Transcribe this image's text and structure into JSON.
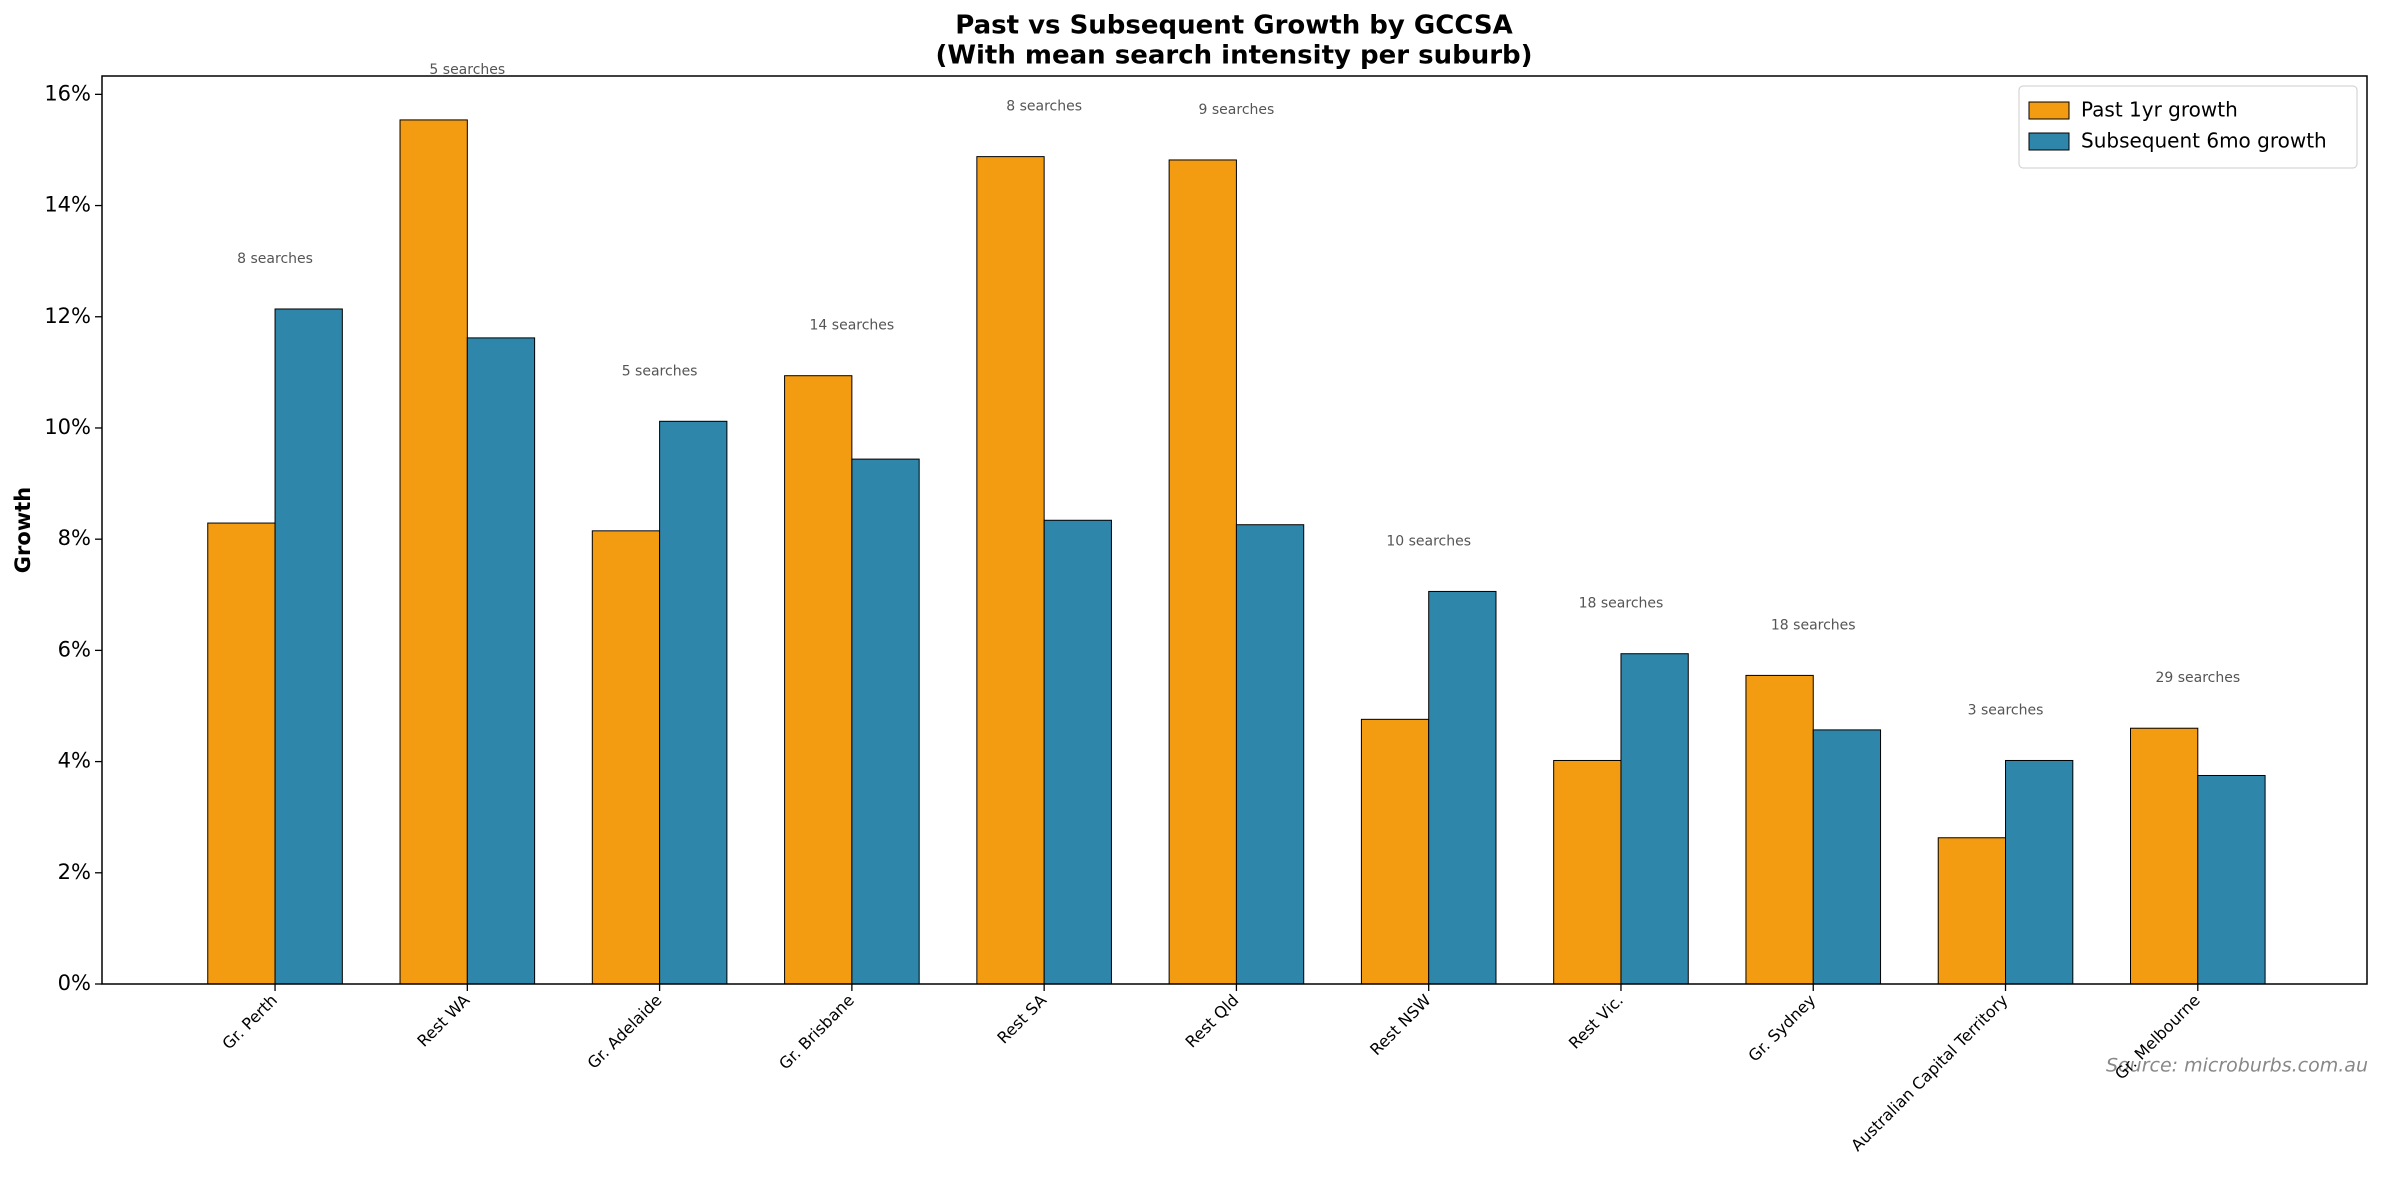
{
  "chart_data": {
    "type": "bar",
    "title": "Past vs Subsequent Growth by GCCSA",
    "subtitle": "(With mean search intensity per suburb)",
    "y_label": "Growth",
    "categories": [
      "Gr. Perth",
      "Rest WA",
      "Gr. Adelaide",
      "Gr. Brisbane",
      "Rest SA",
      "Rest Qld",
      "Rest NSW",
      "Rest Vic.",
      "Gr. Sydney",
      "Australian Capital Territory",
      "Gr. Melbourne"
    ],
    "series": [
      {
        "name": "Past 1yr growth",
        "color": "#f39c12",
        "values": [
          8.29,
          15.54,
          8.15,
          10.94,
          14.88,
          14.82,
          4.76,
          4.02,
          5.55,
          2.63,
          4.6
        ]
      },
      {
        "name": "Subsequent 6mo growth",
        "color": "#2e86ab",
        "values": [
          12.14,
          11.62,
          10.12,
          9.44,
          8.34,
          8.26,
          7.06,
          5.94,
          4.57,
          4.02,
          3.75
        ]
      }
    ],
    "annotations": [
      "8 searches",
      "5 searches",
      "5 searches",
      "14 searches",
      "8 searches",
      "9 searches",
      "10 searches",
      "18 searches",
      "18 searches",
      "3 searches",
      "29 searches"
    ],
    "ylim": [
      0,
      16.33
    ],
    "yticks": [
      {
        "value": 0,
        "label": "0%"
      },
      {
        "value": 2,
        "label": "2%"
      },
      {
        "value": 4,
        "label": "4%"
      },
      {
        "value": 6,
        "label": "6%"
      },
      {
        "value": 8,
        "label": "8%"
      },
      {
        "value": 10,
        "label": "10%"
      },
      {
        "value": 12,
        "label": "12%"
      },
      {
        "value": 14,
        "label": "14%"
      },
      {
        "value": 16,
        "label": "16%"
      }
    ],
    "legend": "upper right",
    "source": "Source: microburbs.com.au"
  }
}
